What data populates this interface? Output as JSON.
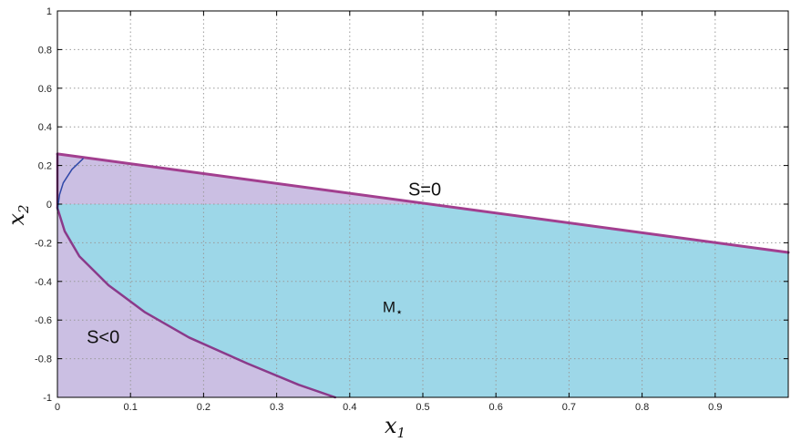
{
  "chart_data": {
    "type": "area",
    "title": "",
    "xlabel": "x",
    "xlabel_sub": "1",
    "ylabel": "x",
    "ylabel_sub": "2",
    "xlim": [
      0,
      1
    ],
    "ylim": [
      -1,
      1
    ],
    "grid": true,
    "x_ticks": [
      {
        "value": 0,
        "label": "0"
      },
      {
        "value": 0.1,
        "label": "0.1"
      },
      {
        "value": 0.2,
        "label": "0.2"
      },
      {
        "value": 0.3,
        "label": "0.3"
      },
      {
        "value": 0.4,
        "label": "0.4"
      },
      {
        "value": 0.5,
        "label": "0.5"
      },
      {
        "value": 0.6,
        "label": "0.6"
      },
      {
        "value": 0.7,
        "label": "0.7"
      },
      {
        "value": 0.8,
        "label": "0.8"
      },
      {
        "value": 0.9,
        "label": "0.9"
      }
    ],
    "y_ticks": [
      {
        "value": 1,
        "label": "1"
      },
      {
        "value": 0.8,
        "label": "0.8"
      },
      {
        "value": 0.6,
        "label": "0.6"
      },
      {
        "value": 0.4,
        "label": "0.4"
      },
      {
        "value": 0.2,
        "label": "0.2"
      },
      {
        "value": 0,
        "label": "0"
      },
      {
        "value": -0.2,
        "label": "-0.2"
      },
      {
        "value": -0.4,
        "label": "-0.4"
      },
      {
        "value": -0.6,
        "label": "-0.6"
      },
      {
        "value": -0.8,
        "label": "-0.8"
      },
      {
        "value": -1,
        "label": "-1"
      }
    ],
    "regions": {
      "s_negative": {
        "color": "#cbbfe3",
        "points": [
          [
            0,
            0.26
          ],
          [
            1,
            -0.25
          ],
          [
            1,
            -1
          ],
          [
            0,
            -1
          ]
        ]
      },
      "m_star": {
        "color": "#9dd7e8",
        "points": [
          [
            0,
            0
          ],
          [
            0.5,
            0
          ],
          [
            1,
            -0.25
          ],
          [
            1,
            -1
          ],
          [
            0.38,
            -1
          ],
          [
            0.33,
            -0.935
          ],
          [
            0.26,
            -0.825
          ],
          [
            0.18,
            -0.69
          ],
          [
            0.12,
            -0.56
          ],
          [
            0.07,
            -0.42
          ],
          [
            0.03,
            -0.27
          ],
          [
            0.01,
            -0.14
          ],
          [
            0,
            -0.02
          ]
        ]
      }
    },
    "curves": {
      "s_zero_line": {
        "color": "#a23f8f",
        "points": [
          [
            0,
            0.26
          ],
          [
            1,
            -0.25
          ]
        ]
      },
      "lower_boundary": {
        "color": "#8a3a8a",
        "points": [
          [
            0,
            -0.02
          ],
          [
            0.01,
            -0.14
          ],
          [
            0.03,
            -0.27
          ],
          [
            0.07,
            -0.42
          ],
          [
            0.12,
            -0.56
          ],
          [
            0.18,
            -0.69
          ],
          [
            0.26,
            -0.825
          ],
          [
            0.33,
            -0.935
          ],
          [
            0.38,
            -1
          ]
        ]
      },
      "left_edge": {
        "color": "#8a3a8a",
        "points": [
          [
            0,
            0.26
          ],
          [
            0,
            -0.02
          ]
        ]
      },
      "inner_arc": {
        "color": "#2f48a8",
        "points": [
          [
            0.035,
            0.235
          ],
          [
            0.02,
            0.18
          ],
          [
            0.008,
            0.11
          ],
          [
            0.003,
            0.05
          ],
          [
            0,
            -0.03
          ]
        ]
      }
    },
    "annotations": [
      {
        "text": "S=0",
        "x": 0.48,
        "y": 0.045
      },
      {
        "text": "S<0",
        "x": 0.04,
        "y": -0.72
      },
      {
        "text": "M",
        "sub": "⋆",
        "x": 0.445,
        "y": -0.56
      }
    ]
  }
}
